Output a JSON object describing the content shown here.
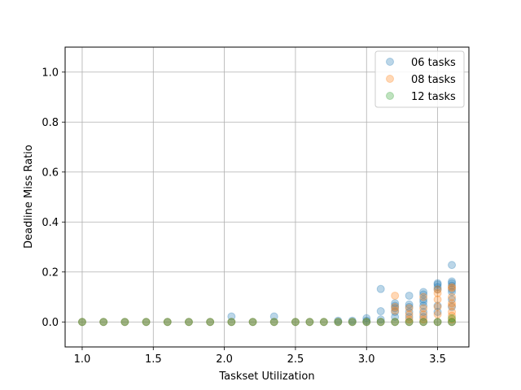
{
  "chart_data": {
    "type": "scatter",
    "title": "",
    "xlabel": "Taskset Utilization",
    "ylabel": "Deadline Miss Ratio",
    "xlim": [
      0.88,
      3.72
    ],
    "ylim": [
      -0.1,
      1.1
    ],
    "xticks": [
      1.0,
      1.5,
      2.0,
      2.5,
      3.0,
      3.5
    ],
    "yticks": [
      0.0,
      0.2,
      0.4,
      0.6,
      0.8,
      1.0
    ],
    "xtick_labels": [
      "1.0",
      "1.5",
      "2.0",
      "2.5",
      "3.0",
      "3.5"
    ],
    "ytick_labels": [
      "0.0",
      "0.2",
      "0.4",
      "0.6",
      "0.8",
      "1.0"
    ],
    "grid": true,
    "legend_position": "top-right",
    "series": [
      {
        "name": "06 tasks",
        "color": "#1f77b4",
        "points": [
          [
            1.0,
            0.0
          ],
          [
            1.15,
            0.0
          ],
          [
            1.3,
            0.0
          ],
          [
            1.45,
            0.0
          ],
          [
            1.6,
            0.0
          ],
          [
            1.75,
            0.0
          ],
          [
            1.9,
            0.0
          ],
          [
            2.05,
            0.0
          ],
          [
            2.05,
            0.022
          ],
          [
            2.2,
            0.0
          ],
          [
            2.35,
            0.0
          ],
          [
            2.35,
            0.022
          ],
          [
            2.5,
            0.0
          ],
          [
            2.6,
            0.0
          ],
          [
            2.7,
            0.0
          ],
          [
            2.8,
            0.0
          ],
          [
            2.8,
            0.005
          ],
          [
            2.9,
            0.0
          ],
          [
            2.9,
            0.005
          ],
          [
            3.0,
            0.0
          ],
          [
            3.0,
            0.005
          ],
          [
            3.0,
            0.015
          ],
          [
            3.1,
            0.0
          ],
          [
            3.1,
            0.01
          ],
          [
            3.1,
            0.043
          ],
          [
            3.1,
            0.132
          ],
          [
            3.2,
            0.0
          ],
          [
            3.2,
            0.02
          ],
          [
            3.2,
            0.04
          ],
          [
            3.2,
            0.055
          ],
          [
            3.2,
            0.065
          ],
          [
            3.2,
            0.075
          ],
          [
            3.3,
            0.0
          ],
          [
            3.3,
            0.02
          ],
          [
            3.3,
            0.04
          ],
          [
            3.3,
            0.06
          ],
          [
            3.3,
            0.07
          ],
          [
            3.3,
            0.105
          ],
          [
            3.4,
            0.0
          ],
          [
            3.4,
            0.02
          ],
          [
            3.4,
            0.04
          ],
          [
            3.4,
            0.065
          ],
          [
            3.4,
            0.08
          ],
          [
            3.4,
            0.09
          ],
          [
            3.4,
            0.11
          ],
          [
            3.4,
            0.12
          ],
          [
            3.5,
            0.0
          ],
          [
            3.5,
            0.04
          ],
          [
            3.5,
            0.065
          ],
          [
            3.5,
            0.13
          ],
          [
            3.5,
            0.14
          ],
          [
            3.5,
            0.15
          ],
          [
            3.5,
            0.155
          ],
          [
            3.6,
            0.0
          ],
          [
            3.6,
            0.06
          ],
          [
            3.6,
            0.09
          ],
          [
            3.6,
            0.12
          ],
          [
            3.6,
            0.13
          ],
          [
            3.6,
            0.145
          ],
          [
            3.6,
            0.155
          ],
          [
            3.6,
            0.162
          ],
          [
            3.6,
            0.228
          ]
        ]
      },
      {
        "name": "08 tasks",
        "color": "#ff7f0e",
        "points": [
          [
            1.0,
            0.0
          ],
          [
            1.15,
            0.0
          ],
          [
            1.3,
            0.0
          ],
          [
            1.45,
            0.0
          ],
          [
            1.6,
            0.0
          ],
          [
            1.75,
            0.0
          ],
          [
            1.9,
            0.0
          ],
          [
            2.05,
            0.0
          ],
          [
            2.2,
            0.0
          ],
          [
            2.35,
            0.0
          ],
          [
            2.5,
            0.0
          ],
          [
            2.6,
            0.0
          ],
          [
            2.7,
            0.0
          ],
          [
            2.8,
            0.0
          ],
          [
            2.9,
            0.0
          ],
          [
            3.0,
            0.0
          ],
          [
            3.1,
            0.0
          ],
          [
            3.2,
            0.0
          ],
          [
            3.2,
            0.045
          ],
          [
            3.2,
            0.06
          ],
          [
            3.2,
            0.105
          ],
          [
            3.3,
            0.0
          ],
          [
            3.3,
            0.01
          ],
          [
            3.3,
            0.03
          ],
          [
            3.3,
            0.055
          ],
          [
            3.4,
            0.0
          ],
          [
            3.4,
            0.01
          ],
          [
            3.4,
            0.03
          ],
          [
            3.4,
            0.055
          ],
          [
            3.4,
            0.1
          ],
          [
            3.5,
            0.0
          ],
          [
            3.5,
            0.03
          ],
          [
            3.5,
            0.06
          ],
          [
            3.5,
            0.09
          ],
          [
            3.5,
            0.115
          ],
          [
            3.5,
            0.13
          ],
          [
            3.6,
            0.0
          ],
          [
            3.6,
            0.01
          ],
          [
            3.6,
            0.025
          ],
          [
            3.6,
            0.04
          ],
          [
            3.6,
            0.065
          ],
          [
            3.6,
            0.075
          ],
          [
            3.6,
            0.1
          ],
          [
            3.6,
            0.135
          ],
          [
            3.6,
            0.14
          ]
        ]
      },
      {
        "name": "12 tasks",
        "color": "#2ca02c",
        "points": [
          [
            1.0,
            0.0
          ],
          [
            1.15,
            0.0
          ],
          [
            1.3,
            0.0
          ],
          [
            1.45,
            0.0
          ],
          [
            1.6,
            0.0
          ],
          [
            1.75,
            0.0
          ],
          [
            1.9,
            0.0
          ],
          [
            2.05,
            0.0
          ],
          [
            2.2,
            0.0
          ],
          [
            2.35,
            0.0
          ],
          [
            2.5,
            0.0
          ],
          [
            2.6,
            0.0
          ],
          [
            2.7,
            0.0
          ],
          [
            2.8,
            0.0
          ],
          [
            2.9,
            0.0
          ],
          [
            3.0,
            0.0
          ],
          [
            3.1,
            0.0
          ],
          [
            3.2,
            0.0
          ],
          [
            3.3,
            0.0
          ],
          [
            3.4,
            0.0
          ],
          [
            3.5,
            0.0
          ],
          [
            3.6,
            0.0
          ],
          [
            3.6,
            0.015
          ]
        ]
      }
    ]
  }
}
